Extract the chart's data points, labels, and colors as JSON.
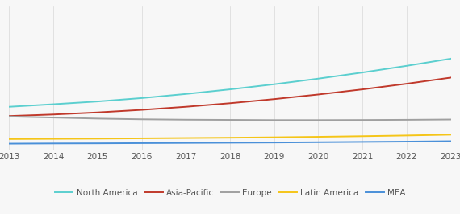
{
  "years": [
    2013,
    2014,
    2015,
    2016,
    2017,
    2018,
    2019,
    2020,
    2021,
    2022,
    2023
  ],
  "north_america": [
    4.2,
    4.45,
    4.72,
    5.05,
    5.45,
    5.9,
    6.4,
    6.95,
    7.55,
    8.2,
    8.9
  ],
  "asia_pacific": [
    3.3,
    3.45,
    3.65,
    3.9,
    4.2,
    4.55,
    4.95,
    5.4,
    5.9,
    6.45,
    7.05
  ],
  "europe": [
    3.25,
    3.15,
    3.05,
    2.98,
    2.94,
    2.92,
    2.9,
    2.9,
    2.91,
    2.93,
    2.96
  ],
  "latin_america": [
    1.05,
    1.07,
    1.09,
    1.12,
    1.15,
    1.18,
    1.22,
    1.27,
    1.33,
    1.4,
    1.48
  ],
  "mea": [
    0.6,
    0.62,
    0.63,
    0.65,
    0.67,
    0.69,
    0.71,
    0.74,
    0.77,
    0.8,
    0.84
  ],
  "colors": {
    "north_america": "#5bcfcf",
    "asia_pacific": "#c0392b",
    "europe": "#a0a0a0",
    "latin_america": "#f5c518",
    "mea": "#4a90d9"
  },
  "legend_labels": [
    "North America",
    "Asia-Pacific",
    "Europe",
    "Latin America",
    "MEA"
  ],
  "background_color": "#f7f7f7",
  "grid_color": "#d8d8d8",
  "xlim": [
    2013,
    2023
  ],
  "ylim": [
    0,
    14.0
  ],
  "line_width": 1.4,
  "tick_fontsize": 7.5,
  "tick_color": "#555555"
}
